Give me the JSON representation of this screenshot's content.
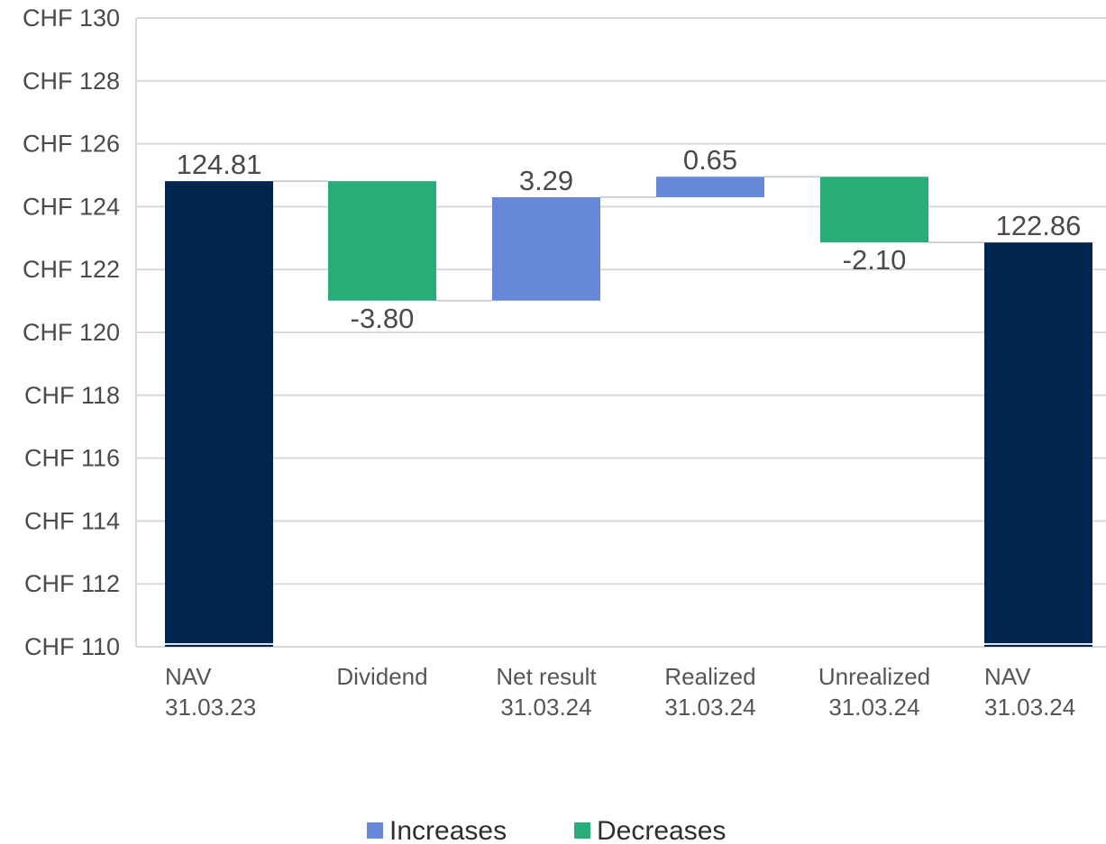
{
  "chart_data": {
    "type": "bar",
    "subtype": "waterfall",
    "title": "",
    "xlabel": "",
    "ylabel": "",
    "ylim": [
      110,
      130
    ],
    "y_ticks": [
      110,
      112,
      114,
      116,
      118,
      120,
      122,
      124,
      126,
      128,
      130
    ],
    "y_tick_prefix": "CHF ",
    "grid": true,
    "legend_position": "bottom",
    "categories": [
      {
        "line1": "NAV",
        "line2": "31.03.23"
      },
      {
        "line1": "Dividend",
        "line2": ""
      },
      {
        "line1": "Net result",
        "line2": "31.03.24"
      },
      {
        "line1": "Realized",
        "line2": "31.03.24"
      },
      {
        "line1": "Unrealized",
        "line2": "31.03.24"
      },
      {
        "line1": "NAV",
        "line2": "31.03.24"
      }
    ],
    "bars": [
      {
        "kind": "total",
        "start": 110,
        "end": 124.81,
        "label": "124.81"
      },
      {
        "kind": "decrease",
        "start": 124.81,
        "end": 121.01,
        "label": "-3.80"
      },
      {
        "kind": "increase",
        "start": 121.01,
        "end": 124.3,
        "label": "3.29"
      },
      {
        "kind": "increase",
        "start": 124.3,
        "end": 124.95,
        "label": "0.65"
      },
      {
        "kind": "decrease",
        "start": 124.95,
        "end": 122.86,
        "label": "-2.10"
      },
      {
        "kind": "total",
        "start": 110,
        "end": 122.86,
        "label": "122.86"
      }
    ],
    "legend": [
      {
        "key": "increase",
        "label": "Increases"
      },
      {
        "key": "decrease",
        "label": "Decreases"
      }
    ],
    "colors": {
      "total": "#002650",
      "increase": "#6788d8",
      "decrease": "#29ad78",
      "grid": "#d9d9d9",
      "connector": "#cfcfcf"
    }
  }
}
